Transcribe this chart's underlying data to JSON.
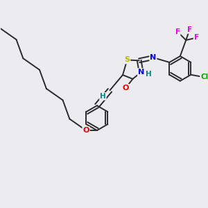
{
  "bg_color": "#ebebf0",
  "bond_color": "#2a2a2a",
  "bond_width": 1.4,
  "atom_colors": {
    "S": "#b8b800",
    "N": "#0000ee",
    "O": "#ee0000",
    "F": "#ee00ee",
    "Cl": "#00aa00",
    "H": "#008888"
  },
  "figsize": [
    3.0,
    3.0
  ],
  "dpi": 100
}
